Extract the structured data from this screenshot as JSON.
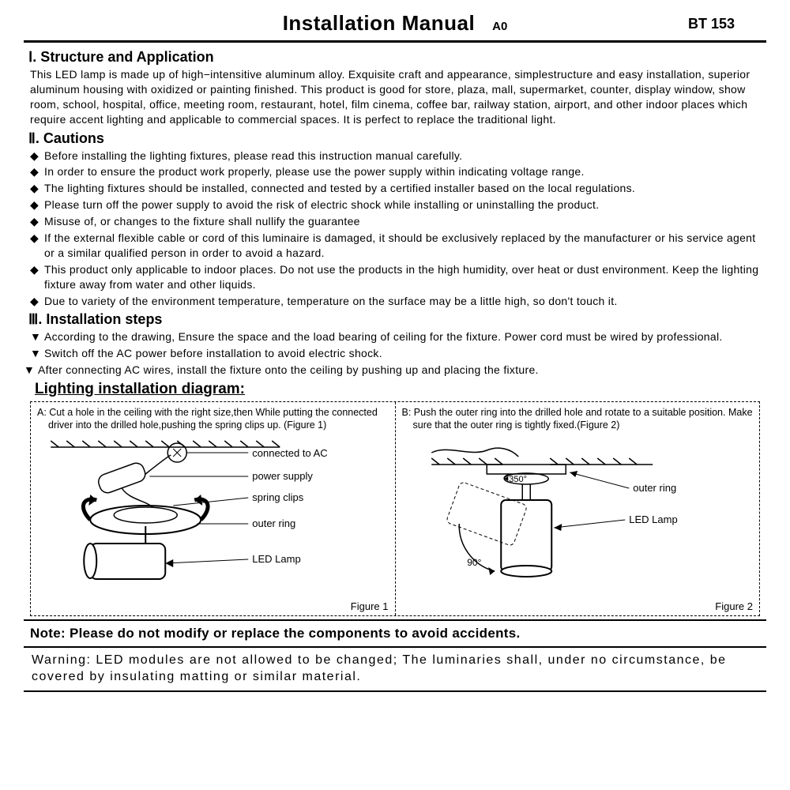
{
  "header": {
    "title": "Installation Manual",
    "rev": "A0",
    "model": "BT 153"
  },
  "section1": {
    "title": "Ⅰ. Structure and Application",
    "body": "This LED lamp is made up of high−intensitive aluminum alloy. Exquisite craft and appearance, simplestructure and easy installation, superior aluminum housing with oxidized or painting finished. This product is good for store, plaza, mall, supermarket, counter, display window, show room, school, hospital, office, meeting room, restaurant, hotel, film cinema, coffee bar, railway station, airport, and other indoor places which require accent lighting and applicable to commercial spaces. It is perfect to replace the traditional light."
  },
  "section2": {
    "title": "Ⅱ. Cautions",
    "items": [
      "Before installing the lighting fixtures, please read this instruction manual carefully.",
      "In order to ensure the product work properly, please use the power supply within indicating voltage range.",
      "The lighting fixtures should be installed, connected and tested by a certified installer based on  the local regulations.",
      "Please turn off the power supply to avoid the risk of electric shock while installing or uninstalling  the product.",
      "Misuse of, or changes to the fixture shall nullify the guarantee",
      "If the external flexible cable or cord of this luminaire is damaged, it should be exclusively replaced by the manufacturer or his service agent or a similar qualified person in order to avoid a  hazard.",
      "This product only applicable to indoor places. Do not use the products in the high humidity, over  heat or dust environment. Keep the lighting fixture away from water and other liquids.",
      "Due to variety of the environment temperature, temperature on the surface may be a little high,  so don't touch it."
    ]
  },
  "section3": {
    "title": "Ⅲ. Installation steps",
    "items": [
      "According to the drawing, Ensure the space and the load bearing of ceiling for the fixture. Power cord must be wired by professional.",
      "Switch off the AC power before installation to avoid electric shock.",
      "After connecting AC wires, install the fixture onto the ceiling by pushing up and placing the fixture."
    ]
  },
  "diagram": {
    "title": "Lighting installation diagram:",
    "figA": {
      "caption": "A:  Cut a hole in the ceiling with the right size,then While putting the connected driver into the drilled hole,pushing the spring clips up. (Figure 1)",
      "labels": {
        "ac": "connected to AC",
        "psu": "power supply",
        "clips": "spring clips",
        "ring": "outer ring",
        "lamp": "LED Lamp"
      },
      "figlabel": "Figure 1"
    },
    "figB": {
      "caption": "B:  Push the outer ring into the drilled hole and rotate to a suitable position. Make sure that the outer ring is tightly fixed.(Figure 2)",
      "labels": {
        "angle1": "350°",
        "angle2": "90°",
        "ring": "outer ring",
        "lamp": "LED Lamp"
      },
      "figlabel": "Figure 2"
    }
  },
  "note": "Note: Please do not modify or replace the components to avoid accidents.",
  "warning": "Warning: LED modules are not allowed to be changed; The luminaries shall, under no circumstance, be covered by insulating matting or similar material.",
  "style": {
    "bullet_diamond": "◆",
    "bullet_triangle": "▼",
    "text_color": "#000000",
    "bg_color": "#ffffff"
  }
}
